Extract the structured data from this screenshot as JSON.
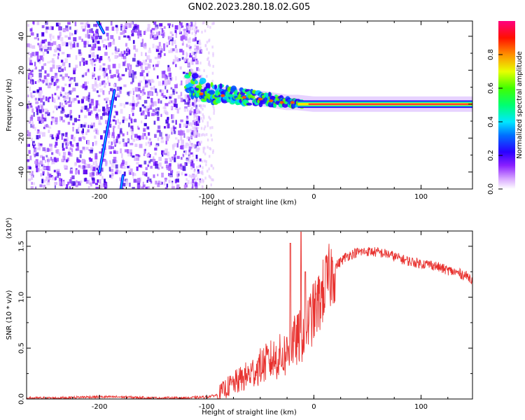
{
  "figure_title": "GN02.2023.280.18.02.G05",
  "colors": {
    "snr_line": "#e8312e",
    "background": "#ffffff",
    "axis": "#000000"
  },
  "chart_data": [
    {
      "type": "heatmap",
      "title": "",
      "xlabel": "Height of straight line (km)",
      "ylabel": "Frequency (Hz)",
      "xlim": [
        -268,
        148
      ],
      "ylim": [
        -50,
        49
      ],
      "xticks": [
        -200,
        -100,
        0,
        100
      ],
      "yticks": [
        -40,
        -20,
        0,
        20,
        40
      ],
      "colorbar": {
        "label": "Normalized spectral amplitude",
        "range": [
          0,
          1
        ],
        "ticks": [
          "0.0",
          "0.2",
          "0.4",
          "0.6",
          "0.8"
        ],
        "colors": [
          "#ffffff",
          "#b060ff",
          "#3000ff",
          "#00e0ff",
          "#00ff40",
          "#ffff00",
          "#ff8000",
          "#ff0000",
          "#ff0080"
        ]
      },
      "features": {
        "noise_region_km": [
          -268,
          -112
        ],
        "cone_edge_km": -115,
        "carrier_ridge": [
          {
            "x": -118,
            "y": 12
          },
          {
            "x": -110,
            "y": 10
          },
          {
            "x": -100,
            "y": 7
          },
          {
            "x": -90,
            "y": 6
          },
          {
            "x": -75,
            "y": 5
          },
          {
            "x": -60,
            "y": 4
          },
          {
            "x": -45,
            "y": 3
          },
          {
            "x": -35,
            "y": 2
          },
          {
            "x": -25,
            "y": 1
          },
          {
            "x": -15,
            "y": 1
          },
          {
            "x": 0,
            "y": 0
          },
          {
            "x": 50,
            "y": 0
          },
          {
            "x": 100,
            "y": 0
          },
          {
            "x": 148,
            "y": 0
          }
        ],
        "streaks": [
          {
            "x1": -202,
            "y1": 49,
            "x2": -196,
            "y2": 42
          },
          {
            "x1": -186,
            "y1": 8,
            "x2": -200,
            "y2": -40
          },
          {
            "x1": -178,
            "y1": -42,
            "x2": -180,
            "y2": -50
          }
        ]
      }
    },
    {
      "type": "line",
      "title": "",
      "xlabel": "Height of straight line (km)",
      "ylabel": "SNR (10 * v/v)",
      "y_multiplier": "(x10⁴)",
      "xlim": [
        -268,
        148
      ],
      "ylim": [
        0,
        1.65
      ],
      "xticks": [
        -200,
        -100,
        0,
        100
      ],
      "yticks": [
        "0.0",
        "0.5",
        "1.0",
        "1.5"
      ],
      "series": [
        {
          "x": [
            -268,
            -240,
            -210,
            -180,
            -150,
            -120,
            -100,
            -90,
            -85,
            -80,
            -70,
            -60,
            -50,
            -40,
            -30,
            -25,
            -20,
            -15,
            -10,
            -5,
            0,
            5,
            10,
            20,
            30,
            40,
            50,
            60,
            70,
            80,
            90,
            100,
            110,
            120,
            130,
            140,
            148
          ],
          "y": [
            0.01,
            0.01,
            0.02,
            0.02,
            0.01,
            0.01,
            0.02,
            0.04,
            0.08,
            0.12,
            0.18,
            0.24,
            0.32,
            0.38,
            0.42,
            0.45,
            0.55,
            0.58,
            0.65,
            0.75,
            0.85,
            0.95,
            1.1,
            1.3,
            1.4,
            1.44,
            1.45,
            1.44,
            1.42,
            1.38,
            1.35,
            1.33,
            1.32,
            1.28,
            1.25,
            1.22,
            1.18
          ]
        }
      ],
      "spikes": [
        {
          "x": -22,
          "y": 1.53
        },
        {
          "x": -12,
          "y": 1.64
        },
        {
          "x": -8,
          "y": 1.25
        }
      ]
    }
  ]
}
